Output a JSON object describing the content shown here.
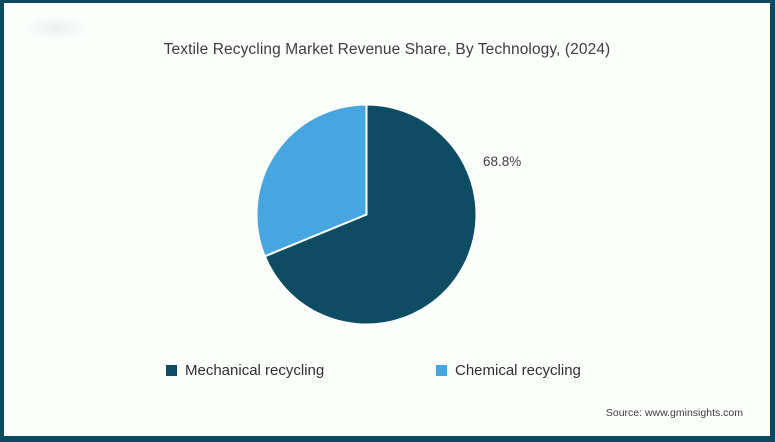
{
  "frame": {
    "border_color": "#0b4a61",
    "background": "#fdfffd"
  },
  "chart_data": {
    "type": "pie",
    "title": "Textile Recycling Market Revenue Share, By Technology, (2024)",
    "start_angle_deg": 0,
    "direction": "clockwise",
    "stroke_color": "#ffffff",
    "stroke_width": 2,
    "legend_position": "bottom",
    "slices": [
      {
        "label": "Mechanical recycling",
        "value": 68.8,
        "color": "#0d4d63",
        "data_label": "68.8%"
      },
      {
        "label": "Chemical recycling",
        "value": 31.2,
        "color": "#47a6df",
        "data_label": ""
      }
    ]
  },
  "source": {
    "text": "Source: www.gminsights.com"
  }
}
